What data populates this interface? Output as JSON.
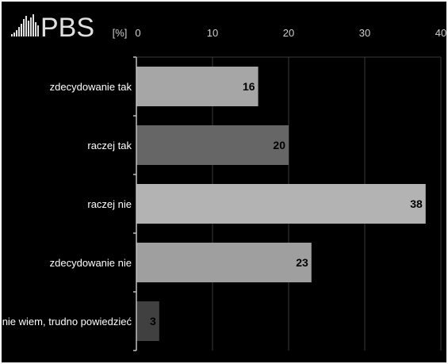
{
  "logo": {
    "text": "PBS"
  },
  "chart_data": {
    "type": "bar",
    "orientation": "horizontal",
    "unit_label": "[%]",
    "categories": [
      "zdecydowanie tak",
      "raczej tak",
      "raczej nie",
      "zdecydowanie nie",
      "nie wiem, trudno powiedzieć"
    ],
    "values": [
      16,
      20,
      38,
      23,
      3
    ],
    "bar_colors": [
      "#a6a6a6",
      "#666666",
      "#b3b3b3",
      "#9f9f9f",
      "#404040"
    ],
    "xlim": [
      0,
      40
    ],
    "xticks": [
      0,
      10,
      20,
      30,
      40
    ],
    "grid": true,
    "legend": "none"
  },
  "colors": {
    "background": "#000000",
    "text": "#ffffff",
    "gridline": "#3a3a3a",
    "axis": "#bfbfbf",
    "value_label": "#000000"
  }
}
